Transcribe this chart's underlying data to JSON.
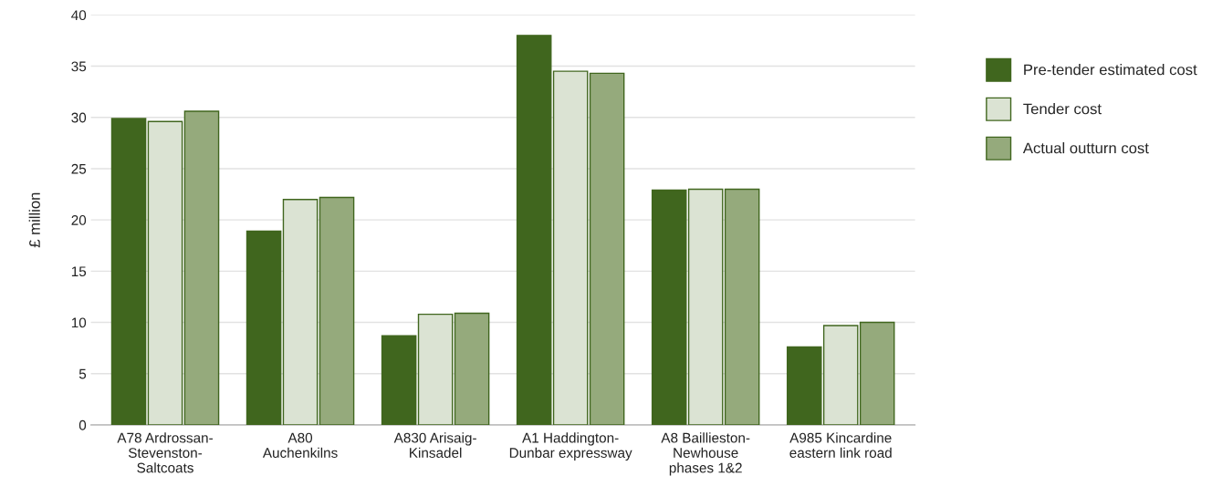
{
  "chart_data": {
    "type": "bar",
    "ylabel": "£ million",
    "categories": [
      "A78 Ardrossan-\nStevenston-\nSaltcoats",
      "A80\nAuchenkilns",
      "A830 Arisaig-\nKinsadel",
      "A1 Haddington-\nDunbar expressway",
      "A8 Baillieston-\nNewhouse\nphases 1&2",
      "A985 Kincardine\neastern link road"
    ],
    "series": [
      {
        "name": "Pre-tender estimated cost",
        "color": "#40661e",
        "values": [
          29.9,
          18.9,
          8.7,
          38.0,
          22.9,
          7.6
        ]
      },
      {
        "name": "Tender cost",
        "color": "#dbe3d3",
        "values": [
          29.6,
          22.0,
          10.8,
          34.5,
          23.0,
          9.7
        ]
      },
      {
        "name": "Actual outturn cost",
        "color": "#95aa7c",
        "values": [
          30.6,
          22.2,
          10.9,
          34.3,
          23.0,
          10.0
        ]
      }
    ],
    "ylim": [
      0,
      40
    ],
    "yticks": [
      0,
      5,
      10,
      15,
      20,
      25,
      30,
      35,
      40
    ],
    "grid": "y",
    "legend": "right"
  }
}
